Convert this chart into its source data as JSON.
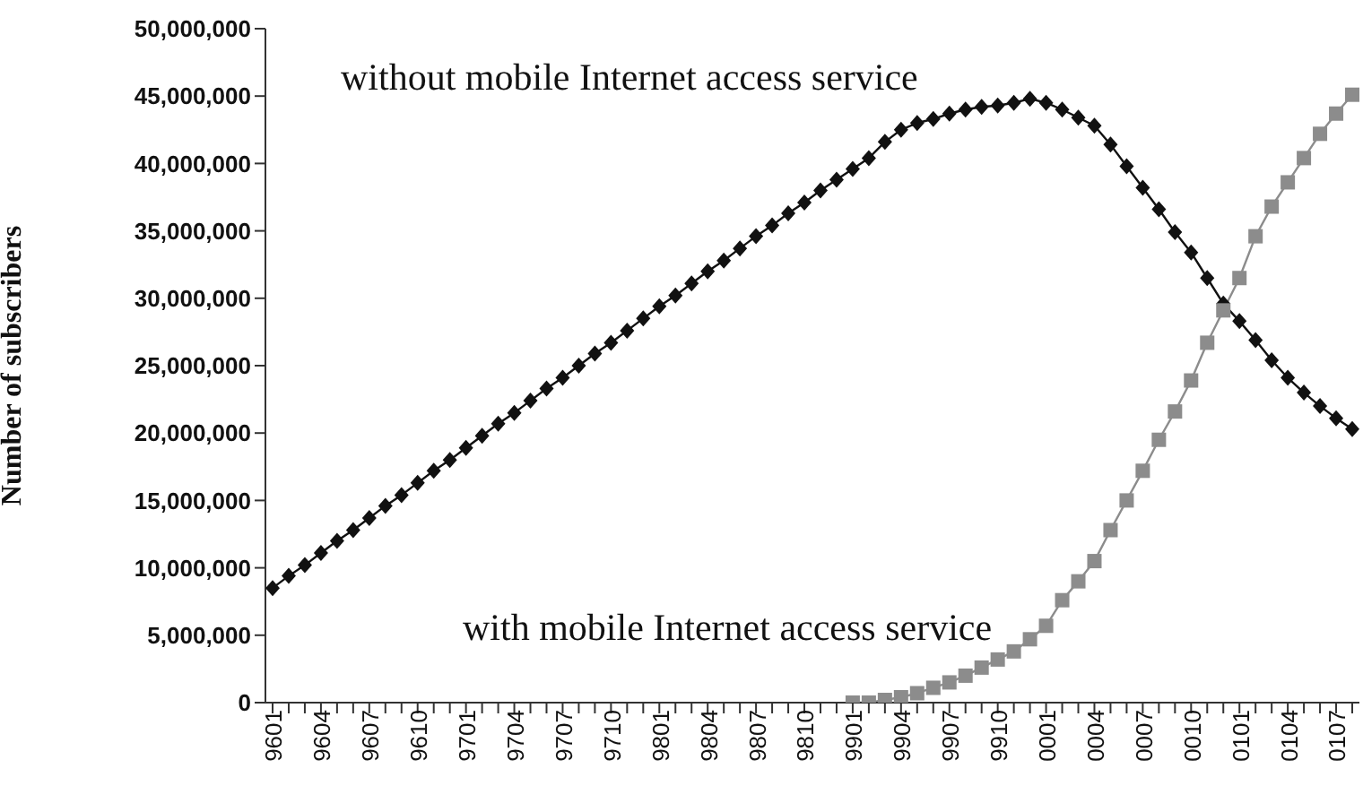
{
  "chart_data": {
    "type": "line",
    "ylabel": "Number of subscribers",
    "categories": [
      "9601",
      null,
      null,
      "9604",
      null,
      null,
      "9607",
      null,
      null,
      "9610",
      null,
      null,
      "9701",
      null,
      null,
      "9704",
      null,
      null,
      "9707",
      null,
      null,
      "9710",
      null,
      null,
      "9801",
      null,
      null,
      "9804",
      null,
      null,
      "9807",
      null,
      null,
      "9810",
      null,
      null,
      "9901",
      null,
      null,
      "9904",
      null,
      null,
      "9907",
      null,
      null,
      "9910",
      null,
      null,
      "0001",
      null,
      null,
      "0004",
      null,
      null,
      "0007",
      null,
      null,
      "0010",
      null,
      null,
      "0101",
      null,
      null,
      "0104",
      null,
      null,
      "0107",
      null
    ],
    "ylim": [
      0,
      50000000
    ],
    "yticks": [
      0,
      {
        "value": 5000000,
        "label": "5,000,000"
      },
      {
        "value": 10000000,
        "label": "10,000,000"
      },
      {
        "value": 15000000,
        "label": "15,000,000"
      },
      {
        "value": 20000000,
        "label": "20,000,000"
      },
      {
        "value": 25000000,
        "label": "25,000,000"
      },
      {
        "value": 30000000,
        "label": "30,000,000"
      },
      {
        "value": 35000000,
        "label": "35,000,000"
      },
      {
        "value": 40000000,
        "label": "40,000,000"
      },
      {
        "value": 45000000,
        "label": "45,000,000"
      },
      {
        "value": 50000000,
        "label": "50,000,000"
      }
    ],
    "series": [
      {
        "name": "without mobile Internet access service",
        "color": "#111111",
        "marker": "diamond",
        "values": [
          8500000,
          9400000,
          10200000,
          11100000,
          12000000,
          12800000,
          13700000,
          14600000,
          15400000,
          16300000,
          17200000,
          18000000,
          18900000,
          19800000,
          20700000,
          21500000,
          22400000,
          23300000,
          24100000,
          25000000,
          25900000,
          26700000,
          27600000,
          28500000,
          29400000,
          30200000,
          31100000,
          32000000,
          32800000,
          33700000,
          34600000,
          35400000,
          36300000,
          37100000,
          38000000,
          38800000,
          39600000,
          40400000,
          41600000,
          42500000,
          43000000,
          43300000,
          43700000,
          44000000,
          44200000,
          44300000,
          44500000,
          44800000,
          44500000,
          44000000,
          43400000,
          42800000,
          41400000,
          39800000,
          38200000,
          36600000,
          34900000,
          33400000,
          31500000,
          29600000,
          28300000,
          26900000,
          25400000,
          24100000,
          23000000,
          22000000,
          21100000,
          20300000
        ]
      },
      {
        "name": "with mobile Internet access service",
        "color": "#8c8c8c",
        "marker": "square",
        "values": [
          null,
          null,
          null,
          null,
          null,
          null,
          null,
          null,
          null,
          null,
          null,
          null,
          null,
          null,
          null,
          null,
          null,
          null,
          null,
          null,
          null,
          null,
          null,
          null,
          null,
          null,
          null,
          null,
          null,
          null,
          null,
          null,
          null,
          null,
          null,
          null,
          0,
          0,
          200000,
          400000,
          700000,
          1100000,
          1500000,
          2000000,
          2600000,
          3200000,
          3800000,
          4700000,
          5700000,
          7600000,
          9000000,
          10500000,
          12800000,
          15000000,
          17200000,
          19500000,
          21600000,
          23900000,
          26700000,
          29100000,
          31500000,
          34600000,
          36800000,
          38600000,
          40400000,
          42200000,
          43700000,
          45100000
        ]
      }
    ]
  }
}
